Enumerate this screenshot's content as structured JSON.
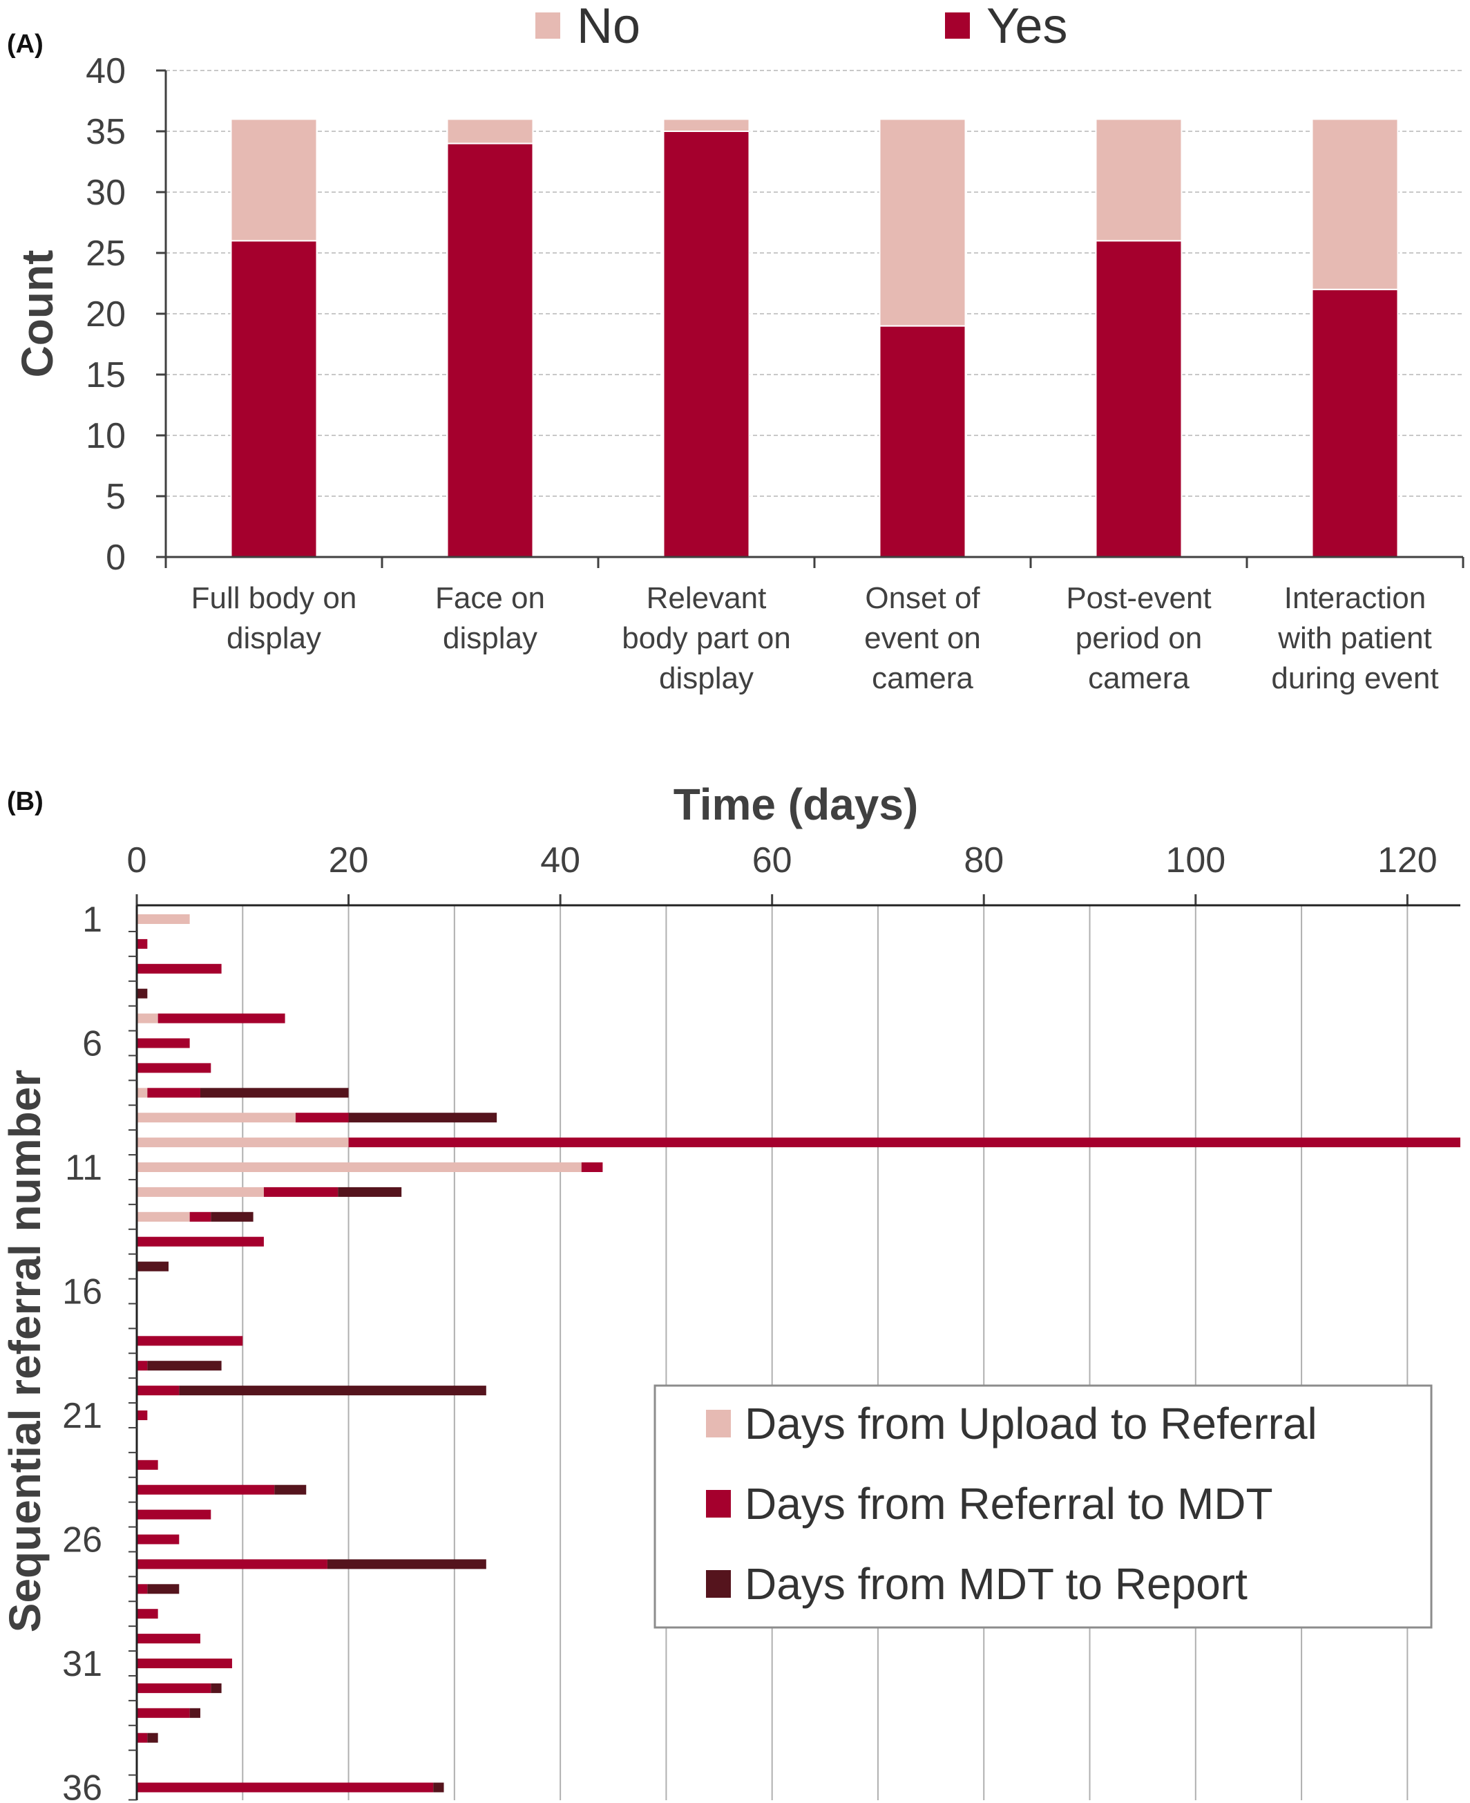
{
  "chart_data": [
    {
      "type": "bar",
      "stacked": true,
      "panel_label": "(A)",
      "title": "",
      "xlabel": "",
      "ylabel": "Count",
      "ylim": [
        0,
        40
      ],
      "yticks": [
        0,
        5,
        10,
        15,
        20,
        25,
        30,
        35,
        40
      ],
      "grid": true,
      "legend_position": "top",
      "categories": [
        [
          "Full body on",
          "display"
        ],
        [
          "Face on",
          "display"
        ],
        [
          "Relevant",
          "body part on",
          "display"
        ],
        [
          "Onset of",
          "event on",
          "camera"
        ],
        [
          "Post-event",
          "period on",
          "camera"
        ],
        [
          "Interaction",
          "with patient",
          "during event"
        ]
      ],
      "series": [
        {
          "name": "Yes",
          "color": "#a5002d",
          "values": [
            26,
            34,
            35,
            19,
            26,
            22
          ]
        },
        {
          "name": "No",
          "color": "#e6bab3",
          "values": [
            10,
            2,
            1,
            17,
            10,
            14
          ]
        }
      ],
      "legend_order": [
        "No",
        "Yes"
      ]
    },
    {
      "type": "bar",
      "orientation": "horizontal",
      "stacked": true,
      "panel_label": "(B)",
      "title": "",
      "xlabel": "Time (days)",
      "ylabel": "Sequential referral number",
      "xlim": [
        0,
        125
      ],
      "xticks": [
        0,
        20,
        40,
        60,
        80,
        100,
        120
      ],
      "y_tick_labels": [
        1,
        6,
        11,
        16,
        21,
        26,
        31,
        36
      ],
      "grid": true,
      "legend_position": "bottom-right",
      "categories": [
        1,
        2,
        3,
        4,
        5,
        6,
        7,
        8,
        9,
        10,
        11,
        12,
        13,
        14,
        15,
        16,
        17,
        18,
        19,
        20,
        21,
        22,
        23,
        24,
        25,
        26,
        27,
        28,
        29,
        30,
        31,
        32,
        33,
        34,
        35,
        36
      ],
      "series": [
        {
          "name": "Days from Upload to Referral",
          "color": "#e6bab3",
          "values": [
            5,
            0,
            0,
            0,
            2,
            0,
            0,
            1,
            15,
            20,
            42,
            12,
            5,
            0,
            0,
            0,
            0,
            0,
            0,
            0,
            0,
            0,
            0,
            0,
            0,
            0,
            0,
            0,
            0,
            0,
            0,
            0,
            0,
            0,
            0,
            0
          ]
        },
        {
          "name": "Days from Referral to MDT",
          "color": "#a5002d",
          "values": [
            0,
            1,
            8,
            0,
            12,
            5,
            7,
            5,
            5,
            105,
            2,
            7,
            2,
            12,
            0,
            0,
            0,
            10,
            1,
            4,
            1,
            0,
            2,
            13,
            7,
            4,
            18,
            1,
            2,
            6,
            9,
            7,
            5,
            1,
            0,
            28
          ]
        },
        {
          "name": "Days from MDT to Report",
          "color": "#55141d",
          "values": [
            0,
            0,
            0,
            1,
            0,
            0,
            0,
            14,
            14,
            0,
            0,
            6,
            4,
            0,
            3,
            0,
            0,
            0,
            7,
            29,
            0,
            0,
            0,
            3,
            0,
            0,
            15,
            3,
            0,
            0,
            0,
            1,
            1,
            1,
            0,
            1
          ]
        }
      ]
    }
  ]
}
